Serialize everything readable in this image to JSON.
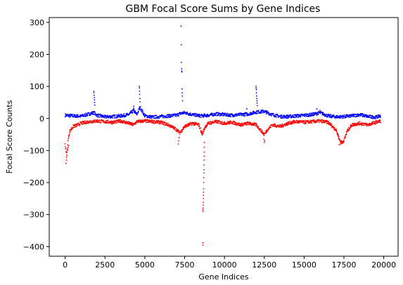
{
  "chart_data": {
    "type": "scatter",
    "title": "GBM Focal Score Sums by Gene Indices",
    "xlabel": "Gene Indices",
    "ylabel": "Focal Score Counts",
    "xlim": [
      -1000,
      20900
    ],
    "ylim": [
      -430,
      315
    ],
    "xticks": [
      0,
      2500,
      5000,
      7500,
      10000,
      12500,
      15000,
      17500,
      20000
    ],
    "xtick_labels": [
      "0",
      "2500",
      "5000",
      "7500",
      "10000",
      "12500",
      "15000",
      "17500",
      "20000"
    ],
    "yticks": [
      300,
      200,
      100,
      0,
      -100,
      -200,
      -300,
      -400
    ],
    "ytick_labels": [
      "300",
      "200",
      "100",
      "0",
      "−100",
      "−200",
      "−300",
      "−400"
    ],
    "grid": false,
    "series": [
      {
        "color": "#0000ff",
        "baseline": [
          [
            0,
            10
          ],
          [
            500,
            8
          ],
          [
            1000,
            7
          ],
          [
            1500,
            14
          ],
          [
            1800,
            18
          ],
          [
            2000,
            10
          ],
          [
            2500,
            5
          ],
          [
            3000,
            6
          ],
          [
            3500,
            8
          ],
          [
            4000,
            12
          ],
          [
            4300,
            25
          ],
          [
            4500,
            12
          ],
          [
            4700,
            35
          ],
          [
            5000,
            8
          ],
          [
            5500,
            4
          ],
          [
            6000,
            6
          ],
          [
            6500,
            8
          ],
          [
            7000,
            10
          ],
          [
            7200,
            15
          ],
          [
            7500,
            18
          ],
          [
            8000,
            12
          ],
          [
            8500,
            8
          ],
          [
            9000,
            10
          ],
          [
            9500,
            14
          ],
          [
            10000,
            12
          ],
          [
            10500,
            10
          ],
          [
            11000,
            12
          ],
          [
            11500,
            14
          ],
          [
            12000,
            20
          ],
          [
            12500,
            22
          ],
          [
            13000,
            12
          ],
          [
            13500,
            6
          ],
          [
            14000,
            6
          ],
          [
            14500,
            8
          ],
          [
            15000,
            10
          ],
          [
            15500,
            12
          ],
          [
            16000,
            18
          ],
          [
            16500,
            8
          ],
          [
            17000,
            5
          ],
          [
            17500,
            6
          ],
          [
            18000,
            8
          ],
          [
            18500,
            12
          ],
          [
            19000,
            6
          ],
          [
            19500,
            4
          ],
          [
            19800,
            8
          ]
        ],
        "spikes": [
          [
            1800,
            85
          ],
          [
            1810,
            80
          ],
          [
            1820,
            72
          ],
          [
            1830,
            65
          ],
          [
            1840,
            58
          ],
          [
            1850,
            50
          ],
          [
            1860,
            42
          ],
          [
            4650,
            100
          ],
          [
            4660,
            95
          ],
          [
            4670,
            85
          ],
          [
            4680,
            75
          ],
          [
            4690,
            62
          ],
          [
            4700,
            52
          ],
          [
            4300,
            38
          ],
          [
            4310,
            32
          ],
          [
            7280,
            288
          ],
          [
            7290,
            230
          ],
          [
            7300,
            175
          ],
          [
            7310,
            155
          ],
          [
            7320,
            148
          ],
          [
            7330,
            145
          ],
          [
            7340,
            92
          ],
          [
            7350,
            80
          ],
          [
            7360,
            70
          ],
          [
            7370,
            55
          ],
          [
            11980,
            100
          ],
          [
            11990,
            95
          ],
          [
            12000,
            90
          ],
          [
            12010,
            80
          ],
          [
            12020,
            70
          ],
          [
            12030,
            62
          ],
          [
            12040,
            55
          ],
          [
            12050,
            48
          ],
          [
            12060,
            40
          ],
          [
            11400,
            30
          ],
          [
            15800,
            30
          ],
          [
            16000,
            25
          ]
        ]
      },
      {
        "color": "#ff0000",
        "baseline": [
          [
            0,
            -80
          ],
          [
            100,
            -120
          ],
          [
            200,
            -60
          ],
          [
            300,
            -40
          ],
          [
            500,
            -25
          ],
          [
            800,
            -20
          ],
          [
            1000,
            -15
          ],
          [
            1500,
            -10
          ],
          [
            2000,
            -8
          ],
          [
            2500,
            -10
          ],
          [
            3000,
            -12
          ],
          [
            3500,
            -8
          ],
          [
            4000,
            -15
          ],
          [
            4300,
            -20
          ],
          [
            4500,
            -10
          ],
          [
            5000,
            -8
          ],
          [
            5500,
            -10
          ],
          [
            6000,
            -12
          ],
          [
            6500,
            -20
          ],
          [
            7000,
            -35
          ],
          [
            7200,
            -45
          ],
          [
            7500,
            -25
          ],
          [
            8000,
            -15
          ],
          [
            8400,
            -20
          ],
          [
            8600,
            -50
          ],
          [
            8800,
            -25
          ],
          [
            9000,
            -15
          ],
          [
            9500,
            -10
          ],
          [
            10000,
            -15
          ],
          [
            10500,
            -12
          ],
          [
            11000,
            -20
          ],
          [
            11500,
            -15
          ],
          [
            12000,
            -20
          ],
          [
            12500,
            -50
          ],
          [
            12700,
            -35
          ],
          [
            13000,
            -20
          ],
          [
            13500,
            -25
          ],
          [
            14000,
            -15
          ],
          [
            14500,
            -10
          ],
          [
            15000,
            -12
          ],
          [
            15500,
            -10
          ],
          [
            16000,
            -8
          ],
          [
            16500,
            -12
          ],
          [
            17000,
            -35
          ],
          [
            17300,
            -75
          ],
          [
            17500,
            -70
          ],
          [
            17700,
            -40
          ],
          [
            18000,
            -20
          ],
          [
            18500,
            -15
          ],
          [
            19000,
            -20
          ],
          [
            19500,
            -12
          ],
          [
            19800,
            -8
          ]
        ],
        "spikes": [
          [
            50,
            -140
          ],
          [
            80,
            -130
          ],
          [
            120,
            -115
          ],
          [
            150,
            -100
          ],
          [
            180,
            -90
          ],
          [
            220,
            -85
          ],
          [
            7100,
            -80
          ],
          [
            7120,
            -70
          ],
          [
            7150,
            -60
          ],
          [
            8640,
            -388
          ],
          [
            8645,
            -395
          ],
          [
            8650,
            -290
          ],
          [
            8655,
            -285
          ],
          [
            8660,
            -280
          ],
          [
            8665,
            -270
          ],
          [
            8670,
            -262
          ],
          [
            8675,
            -250
          ],
          [
            8680,
            -240
          ],
          [
            8685,
            -230
          ],
          [
            8690,
            -220
          ],
          [
            8695,
            -200
          ],
          [
            8700,
            -185
          ],
          [
            8705,
            -170
          ],
          [
            8710,
            -160
          ],
          [
            8715,
            -145
          ],
          [
            8720,
            -130
          ],
          [
            8725,
            -118
          ],
          [
            8730,
            -105
          ],
          [
            8735,
            -90
          ],
          [
            8740,
            -75
          ],
          [
            12500,
            -75
          ],
          [
            12520,
            -70
          ],
          [
            12480,
            -65
          ],
          [
            17200,
            -82
          ],
          [
            17300,
            -80
          ],
          [
            17400,
            -78
          ]
        ]
      }
    ]
  }
}
